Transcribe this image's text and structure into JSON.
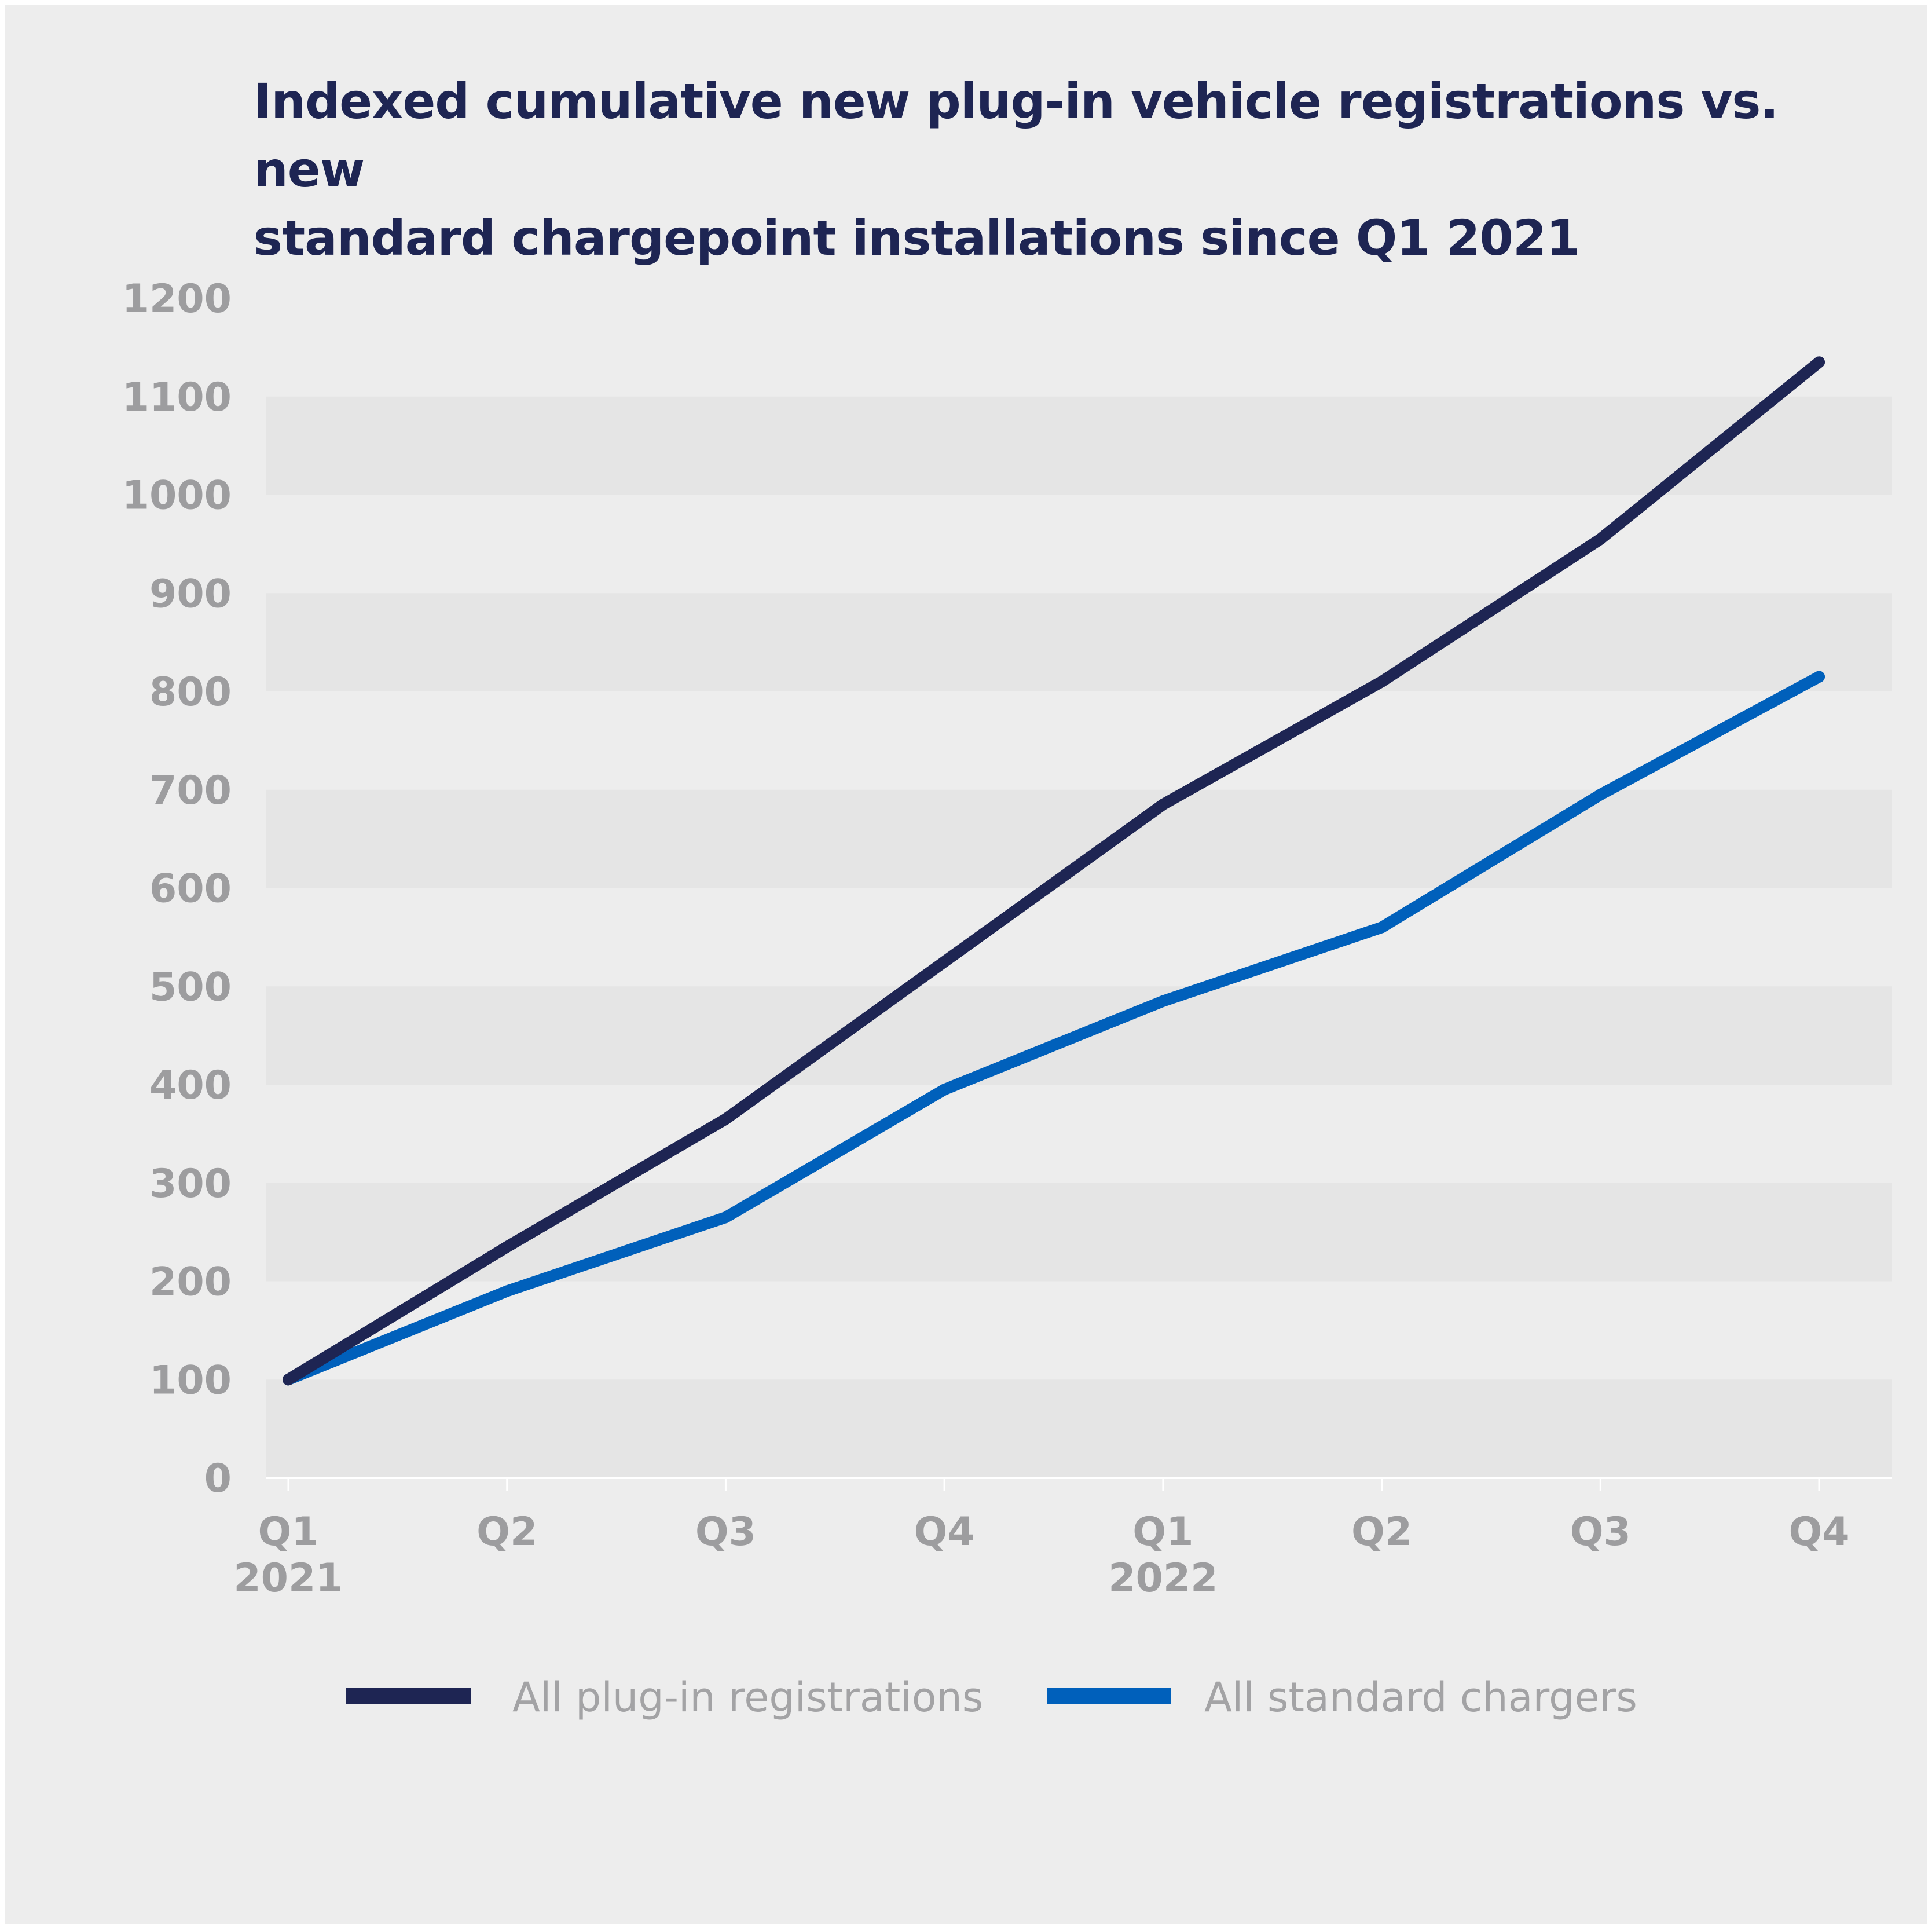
{
  "title_lines": [
    "Indexed cumulative new plug-in vehicle registrations vs. new",
    "standard chargepoint installations since Q1 2021"
  ],
  "colors": {
    "background": "#ededed",
    "band": "#e5e5e5",
    "title": "#1e2553",
    "axis_label": "#9d9d9f",
    "series_registrations": "#1e2553",
    "series_chargers": "#0060bb"
  },
  "chart_data": {
    "type": "line",
    "title": "Indexed cumulative new plug-in vehicle registrations vs. new standard chargepoint installations since Q1 2021",
    "xlabel": "",
    "ylabel": "",
    "ylim": [
      0,
      1200
    ],
    "yticks": [
      0,
      100,
      200,
      300,
      400,
      500,
      600,
      700,
      800,
      900,
      1000,
      1100,
      1200
    ],
    "categories": [
      {
        "quarter": "Q1",
        "year": "2021"
      },
      {
        "quarter": "Q2",
        "year": ""
      },
      {
        "quarter": "Q3",
        "year": ""
      },
      {
        "quarter": "Q4",
        "year": ""
      },
      {
        "quarter": "Q1",
        "year": "2022"
      },
      {
        "quarter": "Q2",
        "year": ""
      },
      {
        "quarter": "Q3",
        "year": ""
      },
      {
        "quarter": "Q4",
        "year": ""
      }
    ],
    "series": [
      {
        "name": "All plug-in registrations",
        "color": "#1e2553",
        "values": [
          100,
          235,
          365,
          525,
          685,
          810,
          955,
          1135
        ]
      },
      {
        "name": "All standard chargers",
        "color": "#0060bb",
        "values": [
          100,
          190,
          265,
          395,
          485,
          560,
          695,
          815
        ]
      }
    ],
    "legend_position": "bottom",
    "grid": false
  }
}
